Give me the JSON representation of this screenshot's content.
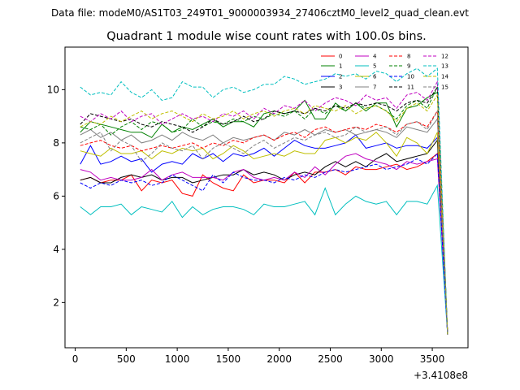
{
  "header": {
    "datafile": "Data file: modeM0/AS1T03_249T01_9000003934_27406cztM0_level2_quad_clean.evt"
  },
  "chart_data": {
    "type": "line",
    "title": "Quadrant 1 module wise count rates with 100.0s bins.",
    "xlabel": "",
    "ylabel": "",
    "x_offset_label": "+3.4108e8",
    "xlim": [
      -100,
      3850
    ],
    "ylim": [
      0.3,
      11.6
    ],
    "xticks": [
      0,
      500,
      1000,
      1500,
      2000,
      2500,
      3000,
      3500
    ],
    "xtick_labels": [
      "0",
      "500",
      "1000",
      "1500",
      "2000",
      "2500",
      "3000",
      "3500"
    ],
    "yticks": [
      2,
      4,
      6,
      8,
      10
    ],
    "ytick_labels": [
      "2",
      "4",
      "6",
      "8",
      "10"
    ],
    "legend": {
      "placement": "top-right",
      "columns": 4
    },
    "x": [
      50,
      150,
      250,
      350,
      450,
      550,
      650,
      750,
      850,
      950,
      1050,
      1150,
      1250,
      1350,
      1450,
      1550,
      1650,
      1750,
      1850,
      1950,
      2050,
      2150,
      2250,
      2350,
      2450,
      2550,
      2650,
      2750,
      2850,
      2950,
      3050,
      3150,
      3250,
      3350,
      3450,
      3550,
      3650
    ],
    "series": [
      {
        "name": "0",
        "color": "#ff0000",
        "dash": false,
        "values": [
          6.6,
          6.7,
          6.5,
          6.6,
          6.6,
          6.8,
          6.2,
          6.6,
          6.5,
          6.6,
          6.1,
          6.0,
          6.8,
          6.5,
          6.3,
          6.2,
          6.8,
          6.5,
          6.6,
          6.6,
          6.5,
          6.9,
          6.5,
          6.9,
          6.9,
          7.0,
          6.8,
          7.1,
          7.0,
          7.0,
          7.1,
          7.2,
          7.0,
          7.1,
          7.3,
          7.6,
          0.9
        ]
      },
      {
        "name": "1",
        "color": "#008000",
        "dash": false,
        "values": [
          8.4,
          8.8,
          8.7,
          8.6,
          8.5,
          8.4,
          8.4,
          8.2,
          8.7,
          8.4,
          8.6,
          8.5,
          8.7,
          8.9,
          8.6,
          8.8,
          8.8,
          8.6,
          9.1,
          9.2,
          9.1,
          9.2,
          9.6,
          8.9,
          8.9,
          9.5,
          9.2,
          9.5,
          9.2,
          9.5,
          9.5,
          8.6,
          9.3,
          9.4,
          9.7,
          9.9,
          0.8
        ]
      },
      {
        "name": "2",
        "color": "#0000ff",
        "dash": false,
        "values": [
          7.2,
          7.9,
          7.2,
          7.3,
          7.5,
          7.3,
          7.4,
          6.9,
          7.2,
          7.3,
          7.2,
          7.6,
          7.4,
          7.6,
          7.3,
          7.6,
          7.5,
          7.6,
          7.8,
          7.5,
          7.8,
          8.1,
          7.9,
          7.8,
          7.8,
          7.9,
          8.0,
          8.3,
          7.8,
          7.9,
          8.0,
          7.8,
          7.9,
          7.9,
          7.8,
          8.2,
          0.8
        ]
      },
      {
        "name": "3",
        "color": "#000000",
        "dash": false,
        "values": [
          6.6,
          6.7,
          6.5,
          6.5,
          6.7,
          6.8,
          6.7,
          6.8,
          6.6,
          6.7,
          6.7,
          6.5,
          6.6,
          6.7,
          6.8,
          6.8,
          7.0,
          6.8,
          6.9,
          6.8,
          6.6,
          6.8,
          6.9,
          6.8,
          7.1,
          7.3,
          7.1,
          7.3,
          7.1,
          7.4,
          7.6,
          7.3,
          7.4,
          7.5,
          7.6,
          8.1,
          0.8
        ]
      },
      {
        "name": "4",
        "color": "#c000c0",
        "dash": false,
        "values": [
          7.0,
          6.9,
          6.6,
          6.7,
          6.6,
          6.6,
          6.7,
          7.0,
          6.6,
          6.8,
          6.9,
          6.7,
          6.7,
          6.7,
          6.6,
          6.9,
          7.0,
          6.7,
          6.6,
          6.7,
          6.6,
          6.9,
          6.7,
          7.1,
          6.8,
          7.2,
          7.5,
          7.6,
          7.4,
          7.3,
          7.2,
          7.0,
          7.3,
          7.2,
          7.3,
          7.4,
          0.8
        ]
      },
      {
        "name": "5",
        "color": "#00bfbf",
        "dash": false,
        "values": [
          5.6,
          5.3,
          5.6,
          5.6,
          5.7,
          5.3,
          5.6,
          5.5,
          5.4,
          5.8,
          5.2,
          5.6,
          5.3,
          5.5,
          5.6,
          5.6,
          5.5,
          5.3,
          5.7,
          5.6,
          5.6,
          5.7,
          5.8,
          5.3,
          6.3,
          5.3,
          5.7,
          6.0,
          5.8,
          5.7,
          5.8,
          5.3,
          5.8,
          5.8,
          5.7,
          6.4,
          0.8
        ]
      },
      {
        "name": "6",
        "color": "#bfbf00",
        "dash": false,
        "values": [
          7.7,
          7.6,
          7.5,
          7.8,
          7.6,
          7.6,
          7.7,
          7.4,
          7.7,
          7.6,
          7.8,
          7.7,
          7.8,
          7.4,
          7.6,
          7.9,
          7.7,
          7.4,
          7.5,
          7.6,
          7.5,
          7.7,
          7.6,
          7.6,
          8.1,
          8.2,
          8.0,
          8.2,
          8.1,
          8.4,
          8.0,
          7.5,
          8.2,
          8.0,
          7.6,
          8.4,
          0.9
        ]
      },
      {
        "name": "7",
        "color": "#808080",
        "dash": false,
        "values": [
          8.3,
          8.5,
          8.2,
          8.4,
          8.1,
          8.3,
          8.0,
          8.1,
          8.3,
          8.1,
          8.4,
          8.2,
          8.1,
          8.3,
          8.0,
          8.2,
          8.1,
          8.2,
          8.3,
          8.1,
          8.4,
          8.3,
          8.5,
          8.3,
          8.5,
          8.4,
          8.5,
          8.3,
          8.4,
          8.5,
          8.4,
          8.2,
          8.6,
          8.5,
          8.4,
          8.9,
          0.8
        ]
      },
      {
        "name": "8",
        "color": "#ff0000",
        "dash": true,
        "values": [
          7.9,
          8.0,
          8.1,
          7.9,
          7.8,
          7.9,
          7.7,
          7.8,
          7.9,
          7.8,
          7.9,
          8.0,
          7.8,
          8.0,
          7.9,
          8.1,
          8.0,
          8.2,
          8.3,
          8.1,
          8.3,
          8.4,
          8.2,
          8.5,
          8.6,
          8.4,
          8.5,
          8.6,
          8.5,
          8.7,
          8.6,
          8.4,
          8.7,
          8.8,
          8.6,
          9.2,
          0.8
        ]
      },
      {
        "name": "9",
        "color": "#008000",
        "dash": true,
        "values": [
          8.6,
          8.5,
          8.7,
          8.3,
          8.6,
          8.8,
          8.5,
          8.8,
          8.7,
          8.4,
          8.5,
          8.9,
          8.6,
          8.8,
          8.7,
          8.9,
          8.8,
          9.0,
          8.9,
          9.1,
          9.0,
          9.2,
          8.9,
          9.3,
          9.1,
          9.4,
          9.2,
          9.5,
          9.3,
          9.4,
          9.2,
          8.9,
          9.4,
          9.6,
          9.3,
          10.1,
          0.8
        ]
      },
      {
        "name": "10",
        "color": "#0000ff",
        "dash": true,
        "values": [
          6.5,
          6.3,
          6.5,
          6.4,
          6.6,
          6.5,
          6.6,
          6.4,
          6.5,
          6.8,
          6.6,
          6.4,
          6.2,
          6.8,
          6.5,
          6.9,
          6.7,
          6.6,
          6.6,
          6.5,
          6.7,
          6.6,
          6.8,
          6.7,
          6.9,
          7.0,
          6.9,
          7.0,
          7.1,
          7.2,
          7.0,
          7.1,
          7.2,
          7.4,
          7.2,
          7.6,
          0.8
        ]
      },
      {
        "name": "11",
        "color": "#000000",
        "dash": true,
        "values": [
          8.7,
          9.1,
          9.0,
          8.9,
          8.8,
          8.9,
          8.7,
          8.6,
          8.8,
          8.7,
          8.6,
          8.4,
          8.6,
          8.9,
          8.7,
          8.8,
          9.0,
          8.8,
          8.9,
          9.2,
          9.1,
          9.2,
          9.1,
          9.3,
          9.2,
          9.4,
          9.3,
          9.5,
          9.4,
          9.5,
          9.4,
          9.2,
          9.5,
          9.6,
          9.5,
          10.1,
          0.8
        ]
      },
      {
        "name": "12",
        "color": "#c000c0",
        "dash": true,
        "values": [
          9.0,
          8.8,
          9.1,
          8.9,
          9.2,
          8.8,
          9.0,
          9.1,
          8.7,
          8.9,
          9.1,
          8.9,
          9.0,
          8.8,
          9.1,
          9.0,
          9.2,
          8.9,
          9.3,
          9.1,
          9.4,
          9.3,
          9.6,
          9.2,
          9.5,
          9.7,
          9.6,
          9.4,
          9.8,
          9.6,
          9.7,
          9.3,
          9.8,
          9.9,
          9.6,
          10.3,
          0.8
        ]
      },
      {
        "name": "13",
        "color": "#00bfbf",
        "dash": true,
        "values": [
          10.1,
          9.8,
          9.9,
          9.8,
          10.3,
          9.9,
          9.7,
          10.0,
          9.6,
          9.7,
          10.3,
          10.1,
          10.1,
          9.7,
          10.0,
          10.1,
          9.9,
          10.0,
          10.2,
          10.2,
          10.5,
          10.4,
          10.2,
          10.3,
          10.4,
          10.6,
          10.5,
          10.6,
          10.4,
          10.7,
          10.6,
          10.3,
          10.6,
          10.8,
          10.5,
          10.8,
          0.8
        ]
      },
      {
        "name": "14",
        "color": "#bfbf00",
        "dash": true,
        "values": [
          8.6,
          8.8,
          8.7,
          9.0,
          8.8,
          9.0,
          9.2,
          8.9,
          9.1,
          9.2,
          9.0,
          8.8,
          9.1,
          8.9,
          9.0,
          9.2,
          8.9,
          9.1,
          9.2,
          9.0,
          9.2,
          9.3,
          9.1,
          9.4,
          9.3,
          9.2,
          9.4,
          9.1,
          9.3,
          9.4,
          9.2,
          8.8,
          9.3,
          9.5,
          9.2,
          9.8,
          0.8
        ]
      },
      {
        "name": "15",
        "color": "#808080",
        "dash": true,
        "values": [
          8.0,
          8.2,
          8.4,
          7.7,
          8.1,
          7.9,
          7.3,
          7.6,
          8.0,
          7.8,
          7.7,
          7.9,
          7.4,
          7.8,
          8.0,
          7.8,
          7.6,
          7.9,
          8.1,
          7.8,
          8.0,
          8.2,
          8.1,
          8.3,
          8.4,
          8.2,
          8.3,
          8.6,
          8.4,
          8.5,
          8.6,
          8.3,
          8.7,
          8.8,
          8.5,
          9.2,
          0.8
        ]
      }
    ]
  }
}
